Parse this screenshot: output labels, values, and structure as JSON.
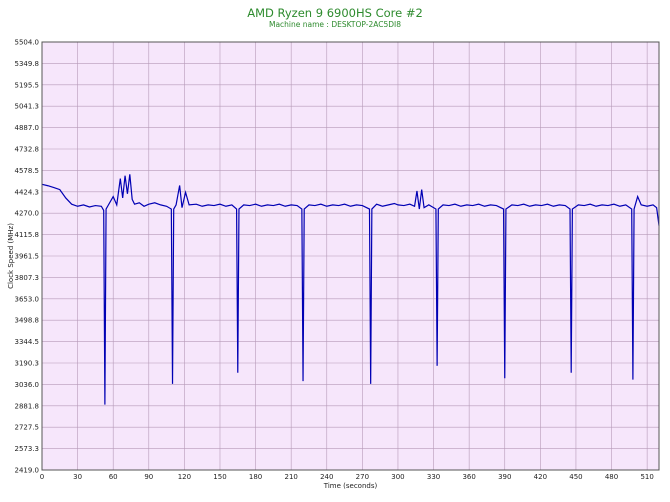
{
  "title": "AMD Ryzen 9 6900HS Core #2",
  "subtitle": "Machine name : DESKTOP-2AC5DI8",
  "chart_data": {
    "type": "line",
    "title": "AMD Ryzen 9 6900HS Core #2",
    "subtitle": "Machine name : DESKTOP-2AC5DI8",
    "xlabel": "Time (seconds)",
    "ylabel": "Clock Speed (MHz)",
    "xlim": [
      0,
      520
    ],
    "ylim": [
      2419.0,
      5504.0
    ],
    "xticks": [
      0,
      30,
      60,
      90,
      120,
      150,
      180,
      210,
      240,
      270,
      300,
      330,
      360,
      390,
      420,
      450,
      480,
      510
    ],
    "yticks": [
      "2419.0",
      "2573.3",
      "2727.5",
      "2881.8",
      "3036.0",
      "3190.3",
      "3344.5",
      "3498.8",
      "3653.0",
      "3807.3",
      "3961.5",
      "4115.8",
      "4270.0",
      "4424.3",
      "4578.5",
      "4732.8",
      "4887.0",
      "5041.3",
      "5195.5",
      "5349.8",
      "5504.0"
    ],
    "grid": true,
    "background": "#f6e6fb",
    "line_color": "#0000b4",
    "series": [
      {
        "values": [
          [
            0,
            4478
          ],
          [
            5,
            4468
          ],
          [
            10,
            4455
          ],
          [
            15,
            4440
          ],
          [
            20,
            4380
          ],
          [
            25,
            4335
          ],
          [
            30,
            4320
          ],
          [
            35,
            4330
          ],
          [
            40,
            4315
          ],
          [
            45,
            4325
          ],
          [
            50,
            4320
          ],
          [
            52,
            4290
          ],
          [
            53,
            2890
          ],
          [
            54,
            4300
          ],
          [
            56,
            4330
          ],
          [
            60,
            4390
          ],
          [
            63,
            4330
          ],
          [
            66,
            4520
          ],
          [
            68,
            4380
          ],
          [
            70,
            4540
          ],
          [
            72,
            4410
          ],
          [
            74,
            4550
          ],
          [
            76,
            4370
          ],
          [
            78,
            4335
          ],
          [
            82,
            4345
          ],
          [
            86,
            4320
          ],
          [
            90,
            4335
          ],
          [
            95,
            4345
          ],
          [
            100,
            4330
          ],
          [
            105,
            4320
          ],
          [
            109,
            4300
          ],
          [
            110,
            3040
          ],
          [
            111,
            4300
          ],
          [
            113,
            4330
          ],
          [
            116,
            4470
          ],
          [
            118,
            4310
          ],
          [
            121,
            4420
          ],
          [
            124,
            4330
          ],
          [
            130,
            4335
          ],
          [
            135,
            4320
          ],
          [
            140,
            4330
          ],
          [
            145,
            4325
          ],
          [
            150,
            4335
          ],
          [
            155,
            4320
          ],
          [
            160,
            4330
          ],
          [
            164,
            4300
          ],
          [
            165,
            3120
          ],
          [
            166,
            4300
          ],
          [
            170,
            4330
          ],
          [
            175,
            4325
          ],
          [
            180,
            4335
          ],
          [
            185,
            4320
          ],
          [
            190,
            4330
          ],
          [
            195,
            4325
          ],
          [
            200,
            4335
          ],
          [
            205,
            4320
          ],
          [
            210,
            4330
          ],
          [
            215,
            4325
          ],
          [
            219,
            4300
          ],
          [
            220,
            3060
          ],
          [
            221,
            4300
          ],
          [
            225,
            4330
          ],
          [
            230,
            4325
          ],
          [
            235,
            4335
          ],
          [
            240,
            4320
          ],
          [
            245,
            4330
          ],
          [
            250,
            4325
          ],
          [
            255,
            4335
          ],
          [
            260,
            4320
          ],
          [
            265,
            4330
          ],
          [
            270,
            4325
          ],
          [
            276,
            4300
          ],
          [
            277,
            3040
          ],
          [
            278,
            4300
          ],
          [
            282,
            4335
          ],
          [
            287,
            4320
          ],
          [
            292,
            4330
          ],
          [
            297,
            4340
          ],
          [
            300,
            4330
          ],
          [
            305,
            4325
          ],
          [
            310,
            4335
          ],
          [
            314,
            4320
          ],
          [
            316,
            4430
          ],
          [
            318,
            4300
          ],
          [
            320,
            4440
          ],
          [
            322,
            4310
          ],
          [
            326,
            4330
          ],
          [
            332,
            4300
          ],
          [
            333,
            3170
          ],
          [
            334,
            4300
          ],
          [
            338,
            4330
          ],
          [
            343,
            4325
          ],
          [
            348,
            4335
          ],
          [
            353,
            4320
          ],
          [
            358,
            4330
          ],
          [
            363,
            4325
          ],
          [
            368,
            4335
          ],
          [
            373,
            4320
          ],
          [
            378,
            4330
          ],
          [
            383,
            4325
          ],
          [
            389,
            4300
          ],
          [
            390,
            3080
          ],
          [
            391,
            4300
          ],
          [
            396,
            4330
          ],
          [
            401,
            4325
          ],
          [
            406,
            4335
          ],
          [
            411,
            4320
          ],
          [
            416,
            4330
          ],
          [
            421,
            4325
          ],
          [
            426,
            4335
          ],
          [
            431,
            4320
          ],
          [
            436,
            4330
          ],
          [
            441,
            4325
          ],
          [
            445,
            4300
          ],
          [
            446,
            3120
          ],
          [
            447,
            4300
          ],
          [
            452,
            4330
          ],
          [
            457,
            4325
          ],
          [
            462,
            4335
          ],
          [
            467,
            4320
          ],
          [
            472,
            4330
          ],
          [
            477,
            4325
          ],
          [
            482,
            4335
          ],
          [
            487,
            4320
          ],
          [
            492,
            4330
          ],
          [
            497,
            4300
          ],
          [
            498,
            3070
          ],
          [
            499,
            4300
          ],
          [
            502,
            4390
          ],
          [
            505,
            4330
          ],
          [
            510,
            4320
          ],
          [
            515,
            4330
          ],
          [
            518,
            4310
          ],
          [
            520,
            4180
          ]
        ]
      }
    ]
  }
}
